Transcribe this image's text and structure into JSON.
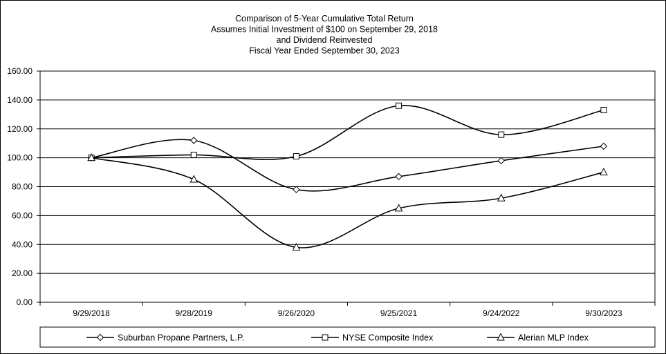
{
  "chart_data": {
    "type": "line",
    "title": [
      "Comparison of 5-Year Cumulative Total Return",
      "Assumes Initial Investment of $100 on September 29, 2018",
      "and Dividend Reinvested",
      "Fiscal Year Ended September 30, 2023"
    ],
    "categories": [
      "9/29/2018",
      "9/28/2019",
      "9/26/2020",
      "9/25/2021",
      "9/24/2022",
      "9/30/2023"
    ],
    "ylim": [
      0,
      160
    ],
    "yticks": [
      "0.00",
      "20.00",
      "40.00",
      "60.00",
      "80.00",
      "100.00",
      "120.00",
      "140.00",
      "160.00"
    ],
    "grid": "horizontal",
    "legend_position": "bottom",
    "series": [
      {
        "name": "Suburban Propane Partners, L.P.",
        "marker": "diamond",
        "values": [
          100,
          112,
          78,
          87,
          98,
          108
        ]
      },
      {
        "name": "NYSE Composite Index",
        "marker": "square",
        "values": [
          100,
          102,
          101,
          136,
          116,
          133
        ]
      },
      {
        "name": "Alerian MLP Index",
        "marker": "triangle",
        "values": [
          100,
          85,
          38,
          65,
          72,
          90
        ]
      }
    ],
    "line_color": "#000000"
  }
}
